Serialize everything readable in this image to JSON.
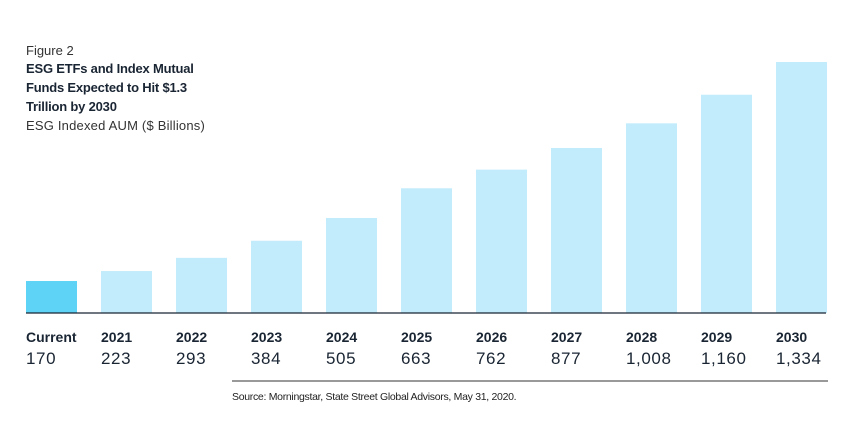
{
  "figure_label": "Figure 2",
  "chart_data": {
    "type": "bar",
    "title": "ESG ETFs and Index Mutual Funds Expected to Hit $1.3 Trillion by 2030",
    "ylabel": "ESG Indexed AUM ($ Billions)",
    "categories": [
      "Current",
      "2021",
      "2022",
      "2023",
      "2024",
      "2025",
      "2026",
      "2027",
      "2028",
      "2029",
      "2030"
    ],
    "values": [
      170,
      223,
      293,
      384,
      505,
      663,
      762,
      877,
      1008,
      1160,
      1334
    ],
    "value_labels": [
      "170",
      "223",
      "293",
      "384",
      "505",
      "663",
      "762",
      "877",
      "1,008",
      "1,160",
      "1,334"
    ],
    "ylim": [
      0,
      1334
    ],
    "grid": false,
    "legend": "none",
    "colors": {
      "highlight": "#5fd3f5",
      "bar": "#c2ecfb",
      "baseline": "#1a2533"
    }
  },
  "source": "Source: Morningstar, State Street Global Advisors, May 31, 2020."
}
